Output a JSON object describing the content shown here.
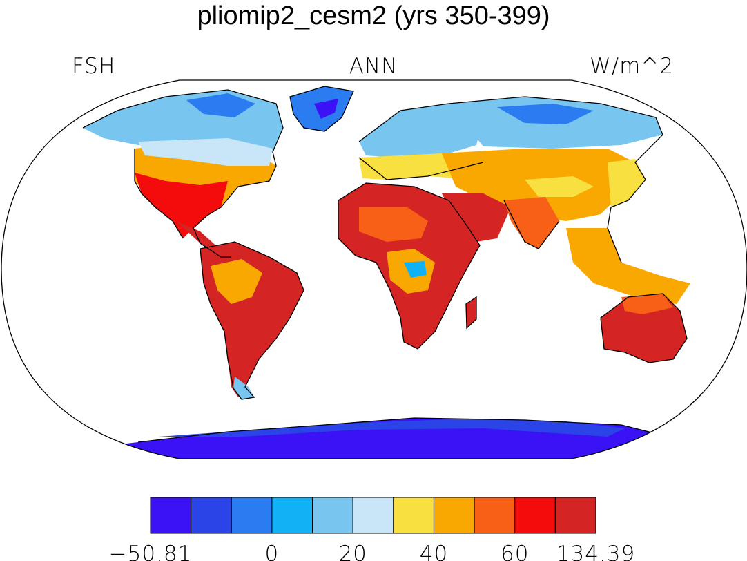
{
  "title": "pliomip2_cesm2 (yrs 350-399)",
  "left_label": "FSH",
  "center_label": "ANN",
  "right_label": "W/m^2",
  "colorbar": {
    "colors": [
      "#3a12f5",
      "#2b44e8",
      "#2b7cf0",
      "#10b2f5",
      "#78c6f0",
      "#c8e6f8",
      "#f8e040",
      "#f8a800",
      "#f86018",
      "#f40c0c",
      "#d42424"
    ],
    "tick_labels": [
      "−50.81",
      "0",
      "20",
      "40",
      "60",
      "134.39"
    ]
  },
  "map": {
    "projection": "Robinson",
    "ocean_color": "#ffffff",
    "coastline_color": "#000000"
  }
}
